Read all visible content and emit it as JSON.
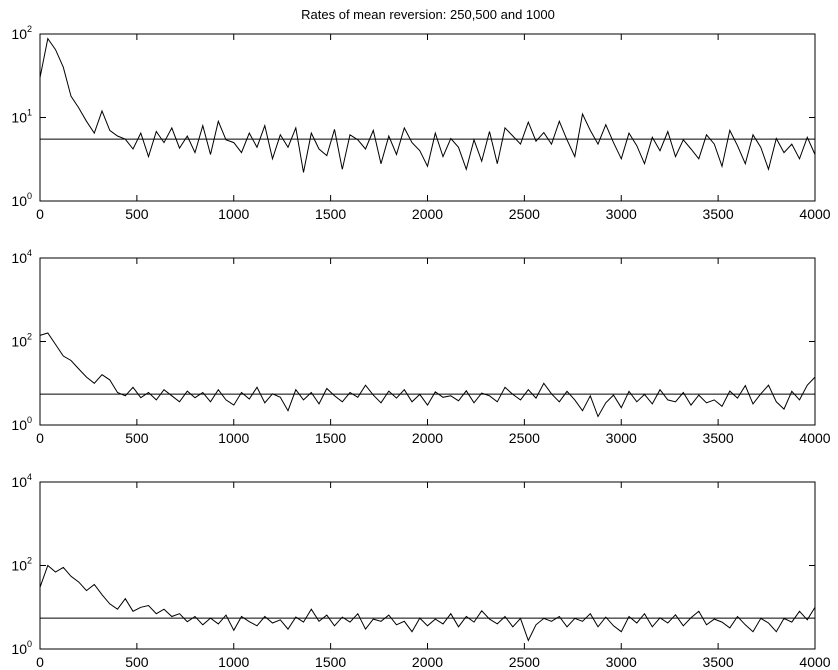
{
  "title": "Rates of mean reversion: 250,500 and 1000",
  "chart_data": [
    {
      "type": "line",
      "title": "Rates of mean reversion: 250,500 and 1000",
      "xlabel": "",
      "ylabel": "",
      "xlim": [
        0,
        4000
      ],
      "ylim": [
        1,
        100
      ],
      "yscale": "log",
      "grid": false,
      "xticks": [
        0,
        500,
        1000,
        1500,
        2000,
        2500,
        3000,
        3500,
        4000
      ],
      "yticks": [
        {
          "base": "10",
          "exp": "0"
        },
        {
          "base": "10",
          "exp": "1"
        },
        {
          "base": "10",
          "exp": "2"
        }
      ],
      "reference_line": 5.5,
      "series": [
        {
          "x": [
            0,
            40,
            80,
            120,
            160,
            200,
            240,
            280,
            320,
            360,
            400,
            440,
            480,
            520,
            560,
            600,
            640,
            680,
            720,
            760,
            800,
            840,
            880,
            920,
            960,
            1000,
            1040,
            1080,
            1120,
            1160,
            1200,
            1240,
            1280,
            1320,
            1360,
            1400,
            1440,
            1480,
            1520,
            1560,
            1600,
            1640,
            1680,
            1720,
            1760,
            1800,
            1840,
            1880,
            1920,
            1960,
            2000,
            2040,
            2080,
            2120,
            2160,
            2200,
            2240,
            2280,
            2320,
            2360,
            2400,
            2440,
            2480,
            2520,
            2560,
            2600,
            2640,
            2680,
            2720,
            2760,
            2800,
            2840,
            2880,
            2920,
            2960,
            3000,
            3040,
            3080,
            3120,
            3160,
            3200,
            3240,
            3280,
            3320,
            3360,
            3400,
            3440,
            3480,
            3520,
            3560,
            3600,
            3640,
            3680,
            3720,
            3760,
            3800,
            3840,
            3880,
            3920,
            3960,
            4000
          ],
          "values": [
            30,
            88,
            65,
            40,
            18,
            13,
            9,
            6.5,
            12,
            7,
            6,
            5.5,
            4.2,
            6.5,
            3.4,
            6.8,
            5,
            7.5,
            4.3,
            6,
            3.8,
            8,
            3.6,
            9,
            5.4,
            5,
            3.8,
            6.5,
            4.4,
            8,
            3.2,
            6.2,
            4.4,
            7.5,
            2.2,
            6.5,
            4.2,
            3.5,
            7.2,
            2.4,
            6.2,
            5.4,
            4.2,
            7,
            2.8,
            6,
            3.6,
            7.5,
            5,
            4,
            2.6,
            6.5,
            3.4,
            5.6,
            4.4,
            2.4,
            5.4,
            3,
            6.8,
            2.8,
            7.5,
            6,
            4.8,
            8.8,
            5.2,
            6.6,
            4.8,
            9,
            5.4,
            3.4,
            11,
            7,
            4.8,
            8.2,
            5,
            3.2,
            6.5,
            4.6,
            2.8,
            5.8,
            4,
            6.8,
            3.4,
            5.4,
            4.2,
            3.2,
            6.2,
            4.8,
            2.6,
            7,
            4.6,
            2.8,
            6.2,
            4.4,
            2.4,
            5.6,
            3.8,
            4.8,
            3.2,
            5.8,
            3.6
          ]
        }
      ]
    },
    {
      "type": "line",
      "title": "",
      "xlabel": "",
      "ylabel": "",
      "xlim": [
        0,
        4000
      ],
      "ylim": [
        1,
        10000
      ],
      "yscale": "log",
      "grid": false,
      "xticks": [
        0,
        500,
        1000,
        1500,
        2000,
        2500,
        3000,
        3500,
        4000
      ],
      "yticks": [
        {
          "base": "10",
          "exp": "0"
        },
        {
          "base": "10",
          "exp": "2"
        },
        {
          "base": "10",
          "exp": "4"
        }
      ],
      "reference_line": 5.5,
      "series": [
        {
          "x": [
            0,
            40,
            80,
            120,
            160,
            200,
            240,
            280,
            320,
            360,
            400,
            440,
            480,
            520,
            560,
            600,
            640,
            680,
            720,
            760,
            800,
            840,
            880,
            920,
            960,
            1000,
            1040,
            1080,
            1120,
            1160,
            1200,
            1240,
            1280,
            1320,
            1360,
            1400,
            1440,
            1480,
            1520,
            1560,
            1600,
            1640,
            1680,
            1720,
            1760,
            1800,
            1840,
            1880,
            1920,
            1960,
            2000,
            2040,
            2080,
            2120,
            2160,
            2200,
            2240,
            2280,
            2320,
            2360,
            2400,
            2440,
            2480,
            2520,
            2560,
            2600,
            2640,
            2680,
            2720,
            2760,
            2800,
            2840,
            2880,
            2920,
            2960,
            3000,
            3040,
            3080,
            3120,
            3160,
            3200,
            3240,
            3280,
            3320,
            3360,
            3400,
            3440,
            3480,
            3520,
            3560,
            3600,
            3640,
            3680,
            3720,
            3760,
            3800,
            3840,
            3880,
            3920,
            3960,
            4000
          ],
          "values": [
            140,
            160,
            85,
            45,
            35,
            22,
            14,
            10,
            16,
            12,
            6,
            5,
            8,
            4.5,
            6,
            4,
            7,
            5,
            3.6,
            6.5,
            4.5,
            6,
            3.6,
            7,
            4,
            3,
            6,
            4.2,
            8,
            3.4,
            5.6,
            4.6,
            2.2,
            7,
            4,
            6,
            3.2,
            7.5,
            5,
            3.6,
            6,
            4.6,
            9,
            5.2,
            3.4,
            6.5,
            4.4,
            7,
            3.6,
            5.4,
            3,
            6.2,
            4.6,
            5,
            3.8,
            6.6,
            3.4,
            5.8,
            5,
            3.6,
            8,
            5.4,
            4,
            7,
            4.4,
            10,
            5.6,
            3.6,
            6.4,
            4,
            2.2,
            5,
            1.6,
            3.4,
            5.2,
            2.6,
            6.4,
            3.6,
            5.4,
            3.2,
            7,
            4,
            3.6,
            6,
            3,
            5.2,
            3.4,
            4,
            2.8,
            6.5,
            4.4,
            8.8,
            3.2,
            5.6,
            9,
            3.6,
            2.4,
            6.4,
            4,
            9,
            14
          ]
        }
      ]
    },
    {
      "type": "line",
      "title": "",
      "xlabel": "",
      "ylabel": "",
      "xlim": [
        0,
        4000
      ],
      "ylim": [
        1,
        10000
      ],
      "yscale": "log",
      "grid": false,
      "xticks": [
        0,
        500,
        1000,
        1500,
        2000,
        2500,
        3000,
        3500,
        4000
      ],
      "yticks": [
        {
          "base": "10",
          "exp": "0"
        },
        {
          "base": "10",
          "exp": "2"
        },
        {
          "base": "10",
          "exp": "4"
        }
      ],
      "reference_line": 5.5,
      "series": [
        {
          "x": [
            0,
            40,
            80,
            120,
            160,
            200,
            240,
            280,
            320,
            360,
            400,
            440,
            480,
            520,
            560,
            600,
            640,
            680,
            720,
            760,
            800,
            840,
            880,
            920,
            960,
            1000,
            1040,
            1080,
            1120,
            1160,
            1200,
            1240,
            1280,
            1320,
            1360,
            1400,
            1440,
            1480,
            1520,
            1560,
            1600,
            1640,
            1680,
            1720,
            1760,
            1800,
            1840,
            1880,
            1920,
            1960,
            2000,
            2040,
            2080,
            2120,
            2160,
            2200,
            2240,
            2280,
            2320,
            2360,
            2400,
            2440,
            2480,
            2520,
            2560,
            2600,
            2640,
            2680,
            2720,
            2760,
            2800,
            2840,
            2880,
            2920,
            2960,
            3000,
            3040,
            3080,
            3120,
            3160,
            3200,
            3240,
            3280,
            3320,
            3360,
            3400,
            3440,
            3480,
            3520,
            3560,
            3600,
            3640,
            3680,
            3720,
            3760,
            3800,
            3840,
            3880,
            3920,
            3960,
            4000
          ],
          "values": [
            30,
            100,
            70,
            90,
            55,
            40,
            25,
            35,
            20,
            12,
            9,
            16,
            8,
            10,
            11,
            7,
            9,
            6,
            7,
            4.5,
            6,
            3.8,
            5.5,
            4,
            6.5,
            2.8,
            6,
            4.5,
            3.6,
            6,
            4.2,
            5,
            3,
            5.8,
            4.4,
            9,
            4.6,
            6.5,
            3.6,
            5.8,
            4.4,
            7,
            3,
            5.2,
            4.6,
            6.5,
            3.8,
            4.6,
            2.6,
            5.5,
            3.6,
            5.2,
            4,
            7,
            3.4,
            6,
            4.4,
            8.2,
            5.2,
            4,
            6,
            3.4,
            5.4,
            1.6,
            3.8,
            5.4,
            4.6,
            6,
            3.4,
            5.4,
            4.6,
            7,
            3.4,
            5.8,
            3.6,
            2.6,
            6,
            4.2,
            7,
            3.4,
            5.6,
            4.2,
            6.6,
            3.6,
            5.6,
            8,
            3.8,
            5.2,
            4.4,
            3.2,
            6,
            3.8,
            2.6,
            5.4,
            4.2,
            2.6,
            5.4,
            4.4,
            8,
            5,
            10
          ]
        }
      ]
    }
  ]
}
